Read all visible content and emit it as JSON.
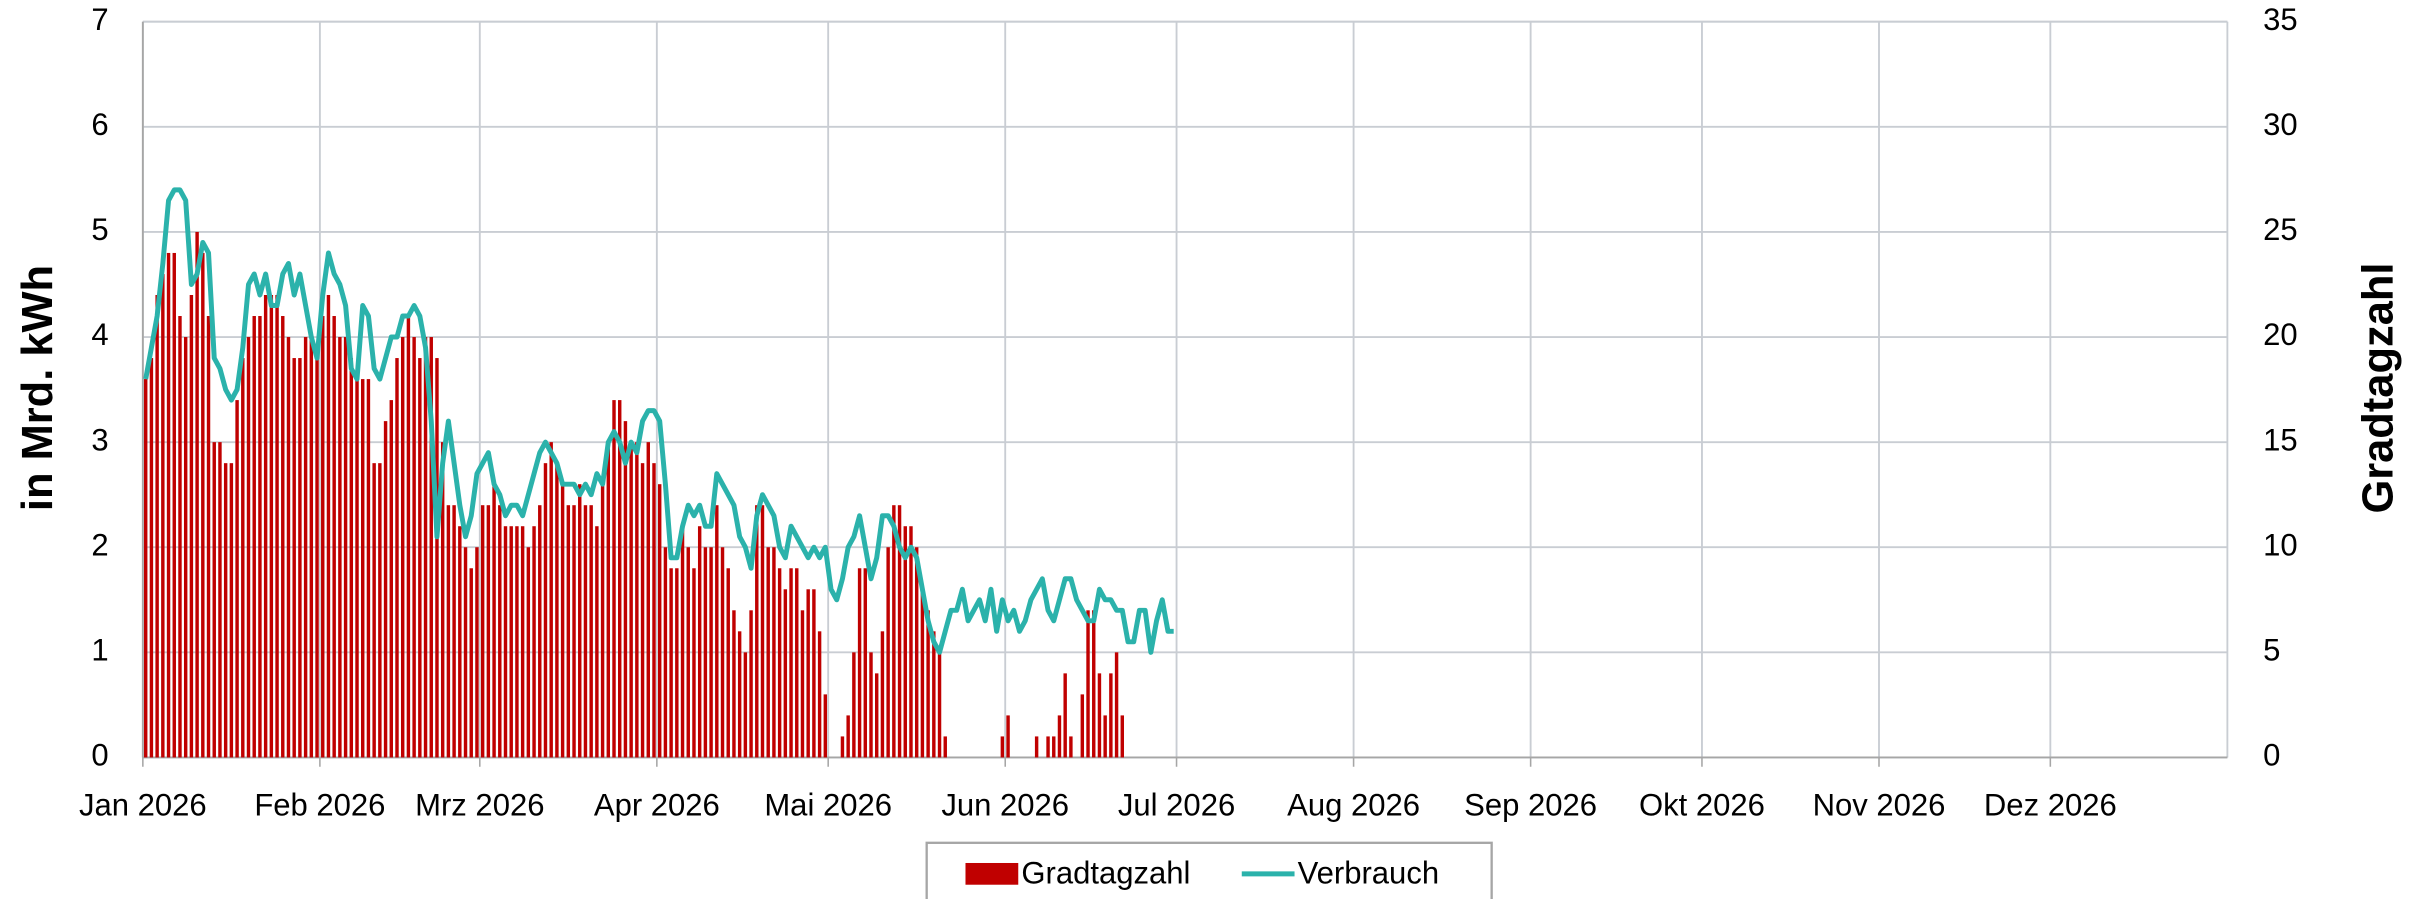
{
  "chart_data": {
    "type": "bar_line",
    "y_label": "in Mrd. kWh",
    "y2_label": "Gradtagzahl",
    "xlim": [
      0,
      365
    ],
    "xticks": [
      {
        "value": 0,
        "label": "Jan 2026"
      },
      {
        "value": 31,
        "label": "Feb 2026"
      },
      {
        "value": 59,
        "label": "Mrz 2026"
      },
      {
        "value": 90,
        "label": "Apr 2026"
      },
      {
        "value": 120,
        "label": "Mai 2026"
      },
      {
        "value": 151,
        "label": "Jun 2026"
      },
      {
        "value": 181,
        "label": "Jul 2026"
      },
      {
        "value": 212,
        "label": "Aug 2026"
      },
      {
        "value": 243,
        "label": "Sep 2026"
      },
      {
        "value": 273,
        "label": "Okt 2026"
      },
      {
        "value": 304,
        "label": "Nov 2026"
      },
      {
        "value": 334,
        "label": "Dez 2026"
      }
    ],
    "ylim": [
      0,
      7
    ],
    "yticks": [
      0,
      1,
      2,
      3,
      4,
      5,
      6,
      7
    ],
    "y2lim": [
      0,
      35
    ],
    "y2ticks": [
      0,
      5,
      10,
      15,
      20,
      25,
      30,
      35
    ],
    "grid": true,
    "legend": "bottom",
    "x": [
      0,
      1,
      2,
      3,
      4,
      5,
      6,
      7,
      8,
      9,
      10,
      11,
      12,
      13,
      14,
      15,
      16,
      17,
      18,
      19,
      20,
      21,
      22,
      23,
      24,
      25,
      26,
      27,
      28,
      29,
      30,
      31,
      32,
      33,
      34,
      35,
      36,
      37,
      38,
      39,
      40,
      41,
      42,
      43,
      44,
      45,
      46,
      47,
      48,
      49,
      50,
      51,
      52,
      53,
      54,
      55,
      56,
      57,
      58,
      59,
      60,
      61,
      62,
      63,
      64,
      65,
      66,
      67,
      68,
      69,
      70,
      71,
      72,
      73,
      74,
      75,
      76,
      77,
      78,
      79,
      80,
      81,
      82,
      83,
      84,
      85,
      86,
      87,
      88,
      89,
      90,
      91,
      92,
      93,
      94,
      95,
      96,
      97,
      98,
      99,
      100,
      101,
      102,
      103,
      104,
      105,
      106,
      107,
      108,
      109,
      110,
      111,
      112,
      113,
      114,
      115,
      116,
      117,
      118,
      119,
      120,
      121,
      122,
      123,
      124,
      125,
      126,
      127,
      128,
      129,
      130,
      131,
      132,
      133,
      134,
      135,
      136,
      137,
      138,
      139,
      140,
      141,
      142,
      143,
      144,
      145,
      146,
      147,
      148,
      149,
      150,
      151,
      152,
      153,
      154,
      155,
      156,
      157,
      158,
      159,
      160,
      161,
      162,
      163,
      164,
      165,
      166,
      167,
      168,
      169,
      170,
      171,
      172,
      173,
      174,
      175,
      176,
      177,
      178,
      179,
      180
    ],
    "series": [
      {
        "name": "Gradtagzahl",
        "kind": "bar",
        "axis": "y2",
        "color": "#c00000",
        "values": [
          18,
          19,
          22,
          23,
          24,
          24,
          21,
          20,
          22,
          25,
          24,
          21,
          15,
          15,
          14,
          14,
          17,
          19,
          20,
          21,
          21,
          22,
          22,
          22,
          21,
          20,
          19,
          19,
          20,
          20,
          19,
          21,
          22,
          21,
          20,
          20,
          19,
          18,
          18,
          18,
          14,
          14,
          16,
          17,
          19,
          20,
          21,
          20,
          19,
          20,
          20,
          19,
          15,
          12,
          12,
          11,
          10,
          9,
          10,
          12,
          12,
          13,
          12,
          11,
          11,
          11,
          11,
          10,
          11,
          12,
          14,
          15,
          14,
          13,
          12,
          12,
          13,
          12,
          12,
          11,
          13,
          15,
          17,
          17,
          16,
          15,
          15,
          14,
          15,
          14,
          13,
          10,
          9,
          9,
          11,
          10,
          9,
          11,
          10,
          10,
          12,
          10,
          9,
          7,
          6,
          5,
          7,
          12,
          12,
          10,
          10,
          9,
          8,
          9,
          9,
          7,
          8,
          8,
          6,
          3,
          0,
          0,
          1,
          2,
          5,
          9,
          9,
          5,
          4,
          6,
          10,
          12,
          12,
          11,
          11,
          10,
          8,
          7,
          6,
          5,
          1,
          0,
          0,
          0,
          0,
          0,
          0,
          0,
          0,
          0,
          1,
          2,
          0,
          0,
          0,
          0,
          1,
          0,
          1,
          1,
          2,
          4,
          1,
          0,
          3,
          7,
          7,
          4,
          2,
          4,
          5,
          2,
          0,
          0,
          0,
          0,
          0,
          0,
          0,
          0,
          0
        ]
      },
      {
        "name": "Verbrauch",
        "kind": "line",
        "color": "#2bb2ab",
        "values": [
          3.6,
          3.9,
          4.2,
          4.7,
          5.3,
          5.4,
          5.4,
          5.3,
          4.5,
          4.6,
          4.9,
          4.8,
          3.8,
          3.7,
          3.5,
          3.4,
          3.5,
          3.9,
          4.5,
          4.6,
          4.4,
          4.6,
          4.3,
          4.3,
          4.6,
          4.7,
          4.4,
          4.6,
          4.3,
          4.0,
          3.8,
          4.4,
          4.8,
          4.6,
          4.5,
          4.3,
          3.7,
          3.6,
          4.3,
          4.2,
          3.7,
          3.6,
          3.8,
          4.0,
          4.0,
          4.2,
          4.2,
          4.3,
          4.2,
          3.9,
          3.2,
          2.1,
          2.8,
          3.2,
          2.8,
          2.4,
          2.1,
          2.3,
          2.7,
          2.8,
          2.9,
          2.6,
          2.5,
          2.3,
          2.4,
          2.4,
          2.3,
          2.5,
          2.7,
          2.9,
          3.0,
          2.9,
          2.8,
          2.6,
          2.6,
          2.6,
          2.5,
          2.6,
          2.5,
          2.7,
          2.6,
          3.0,
          3.1,
          3.0,
          2.8,
          3.0,
          2.9,
          3.2,
          3.3,
          3.3,
          3.2,
          2.6,
          1.9,
          1.9,
          2.2,
          2.4,
          2.3,
          2.4,
          2.2,
          2.2,
          2.7,
          2.6,
          2.5,
          2.4,
          2.1,
          2.0,
          1.8,
          2.3,
          2.5,
          2.4,
          2.3,
          2.0,
          1.9,
          2.2,
          2.1,
          2.0,
          1.9,
          2.0,
          1.9,
          2.0,
          1.6,
          1.5,
          1.7,
          2.0,
          2.1,
          2.3,
          2.0,
          1.7,
          1.9,
          2.3,
          2.3,
          2.2,
          2.0,
          1.9,
          2.0,
          1.9,
          1.6,
          1.3,
          1.1,
          1.0,
          1.2,
          1.4,
          1.4,
          1.6,
          1.3,
          1.4,
          1.5,
          1.3,
          1.6,
          1.2,
          1.5,
          1.3,
          1.4,
          1.2,
          1.3,
          1.5,
          1.6,
          1.7,
          1.4,
          1.3,
          1.5,
          1.7,
          1.7,
          1.5,
          1.4,
          1.3,
          1.3,
          1.6,
          1.5,
          1.5,
          1.4,
          1.4,
          1.1,
          1.1,
          1.4,
          1.4,
          1.0,
          1.3,
          1.5,
          1.2,
          1.2
        ]
      }
    ]
  }
}
